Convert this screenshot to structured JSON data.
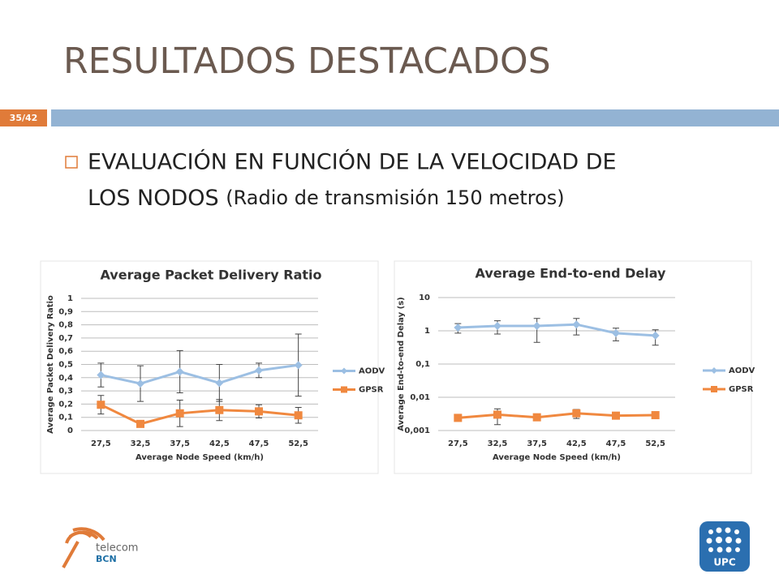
{
  "slide": {
    "title": "RESULTADOS DESTACADOS",
    "page": "35/42",
    "bullet": [
      "EVALUACIÓN EN FUNCIÓN DE LA VELOCIDAD DE",
      "LOS NODOS",
      "(Radio de transmisión 150 metros)"
    ],
    "logo_left": [
      "telecom",
      "BCN"
    ],
    "logo_right": "UPC"
  },
  "chart_data": [
    {
      "type": "line",
      "title": "Average Packet Delivery Ratio",
      "x_label": "Average Node Speed (km/h)",
      "y_label": "Average Packet Delivery Ratio",
      "categories": [
        "27,5",
        "32,5",
        "37,5",
        "42,5",
        "47,5",
        "52,5"
      ],
      "series": [
        {
          "name": "AODV",
          "color": "#9cbfe3",
          "marker": "diamond",
          "values": [
            0.42,
            0.355,
            0.445,
            0.36,
            0.455,
            0.495
          ],
          "errors": [
            0.09,
            0.135,
            0.16,
            0.14,
            0.055,
            0.235
          ]
        },
        {
          "name": "GPSR",
          "color": "#f0883f",
          "marker": "square",
          "values": [
            0.195,
            0.05,
            0.13,
            0.155,
            0.145,
            0.115
          ],
          "errors": [
            0.07,
            0.01,
            0.1,
            0.08,
            0.05,
            0.06
          ]
        }
      ],
      "ylim": [
        0,
        1
      ],
      "yticks": [
        0,
        {
          "value": 0.1,
          "label": "0,1"
        },
        {
          "value": 0.2,
          "label": "0,2"
        },
        {
          "value": 0.3,
          "label": "0,3"
        },
        {
          "value": 0.4,
          "label": "0,4"
        },
        {
          "value": 0.5,
          "label": "0,5"
        },
        {
          "value": 0.6,
          "label": "0,6"
        },
        {
          "value": 0.7,
          "label": "0,7"
        },
        {
          "value": 0.8,
          "label": "0,8"
        },
        {
          "value": 0.9,
          "label": "0,9"
        },
        1
      ],
      "log_scale": false,
      "grid": true,
      "legend": "right"
    },
    {
      "type": "line",
      "title": "Average End-to-end Delay",
      "x_label": "Average Node Speed (km/h)",
      "y_label": "Average End-to-end Delay (s)",
      "categories": [
        "27,5",
        "32,5",
        "37,5",
        "42,5",
        "47,5",
        "52,5"
      ],
      "series": [
        {
          "name": "AODV",
          "color": "#9cbfe3",
          "marker": "diamond",
          "values": [
            1.25,
            1.4,
            1.4,
            1.55,
            0.85,
            0.72
          ],
          "errors": [
            0.4,
            0.6,
            0.95,
            0.8,
            0.35,
            0.35
          ]
        },
        {
          "name": "GPSR",
          "color": "#f0883f",
          "marker": "square",
          "values": [
            0.0024,
            0.003,
            0.0025,
            0.0033,
            0.0028,
            0.0029
          ],
          "errors": [
            0.0003,
            0.0015,
            0.0003,
            0.001,
            0.0002,
            0.0002
          ]
        }
      ],
      "ylim": [
        0.001,
        10
      ],
      "yticks": [
        {
          "value": 0.001,
          "label": "0,001"
        },
        {
          "value": 0.01,
          "label": "0,01"
        },
        {
          "value": 0.1,
          "label": "0,1"
        },
        1,
        10
      ],
      "log_scale": true,
      "grid": true,
      "legend": "right"
    }
  ]
}
